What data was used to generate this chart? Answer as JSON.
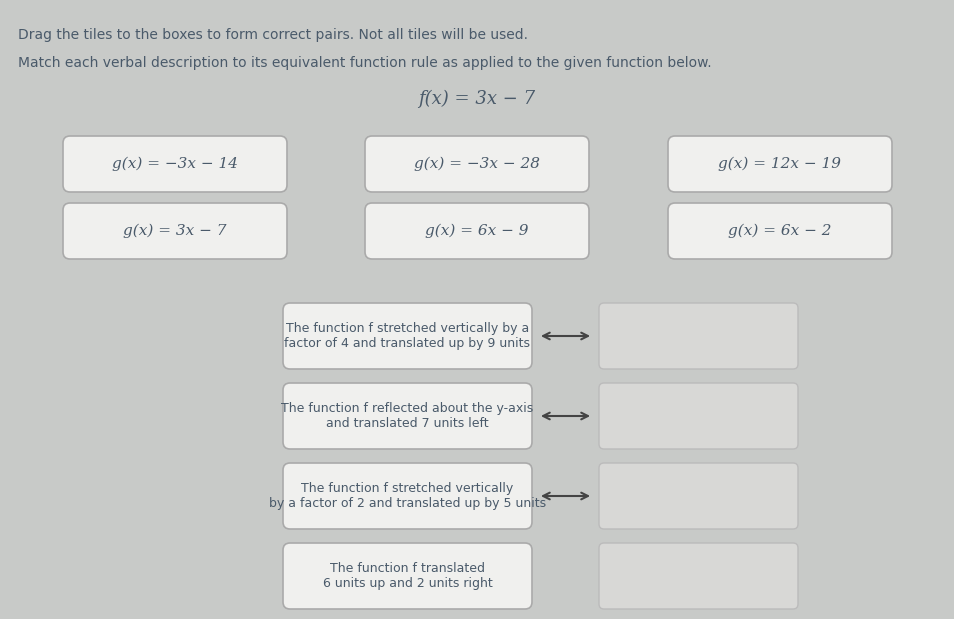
{
  "title_line1": "Drag the tiles to the boxes to form correct pairs. Not all tiles will be used.",
  "title_line2": "Match each verbal description to its equivalent function rule as applied to the given function below.",
  "function_display": "f(x) = 3x − 7",
  "background_color": "#c8cac8",
  "tiles": [
    "g(x) = −3x − 14",
    "g(x) = −3x − 28",
    "g(x) = 12x − 19",
    "g(x) = 3x − 7",
    "g(x) = 6x − 9",
    "g(x) = 6x − 2"
  ],
  "descriptions": [
    "The function f stretched vertically by a\nfactor of 4 and translated up by 9 units",
    "The function f reflected about the y-axis\nand translated 7 units left",
    "The function f stretched vertically\nby a factor of 2 and translated up by 5 units",
    "The function f translated\n6 units up and 2 units right"
  ],
  "tile_bg": "#f0f0ee",
  "tile_border": "#aaaaaa",
  "desc_bg": "#f0f0ee",
  "desc_border": "#aaaaaa",
  "answer_bg": "#d8d8d6",
  "answer_border": "#bbbbbb",
  "arrow_color": "#444444",
  "font_color": "#4a5a6a",
  "font_size_title1": 10,
  "font_size_title2": 10,
  "font_size_function": 13,
  "font_size_tile": 11,
  "font_size_desc": 9
}
